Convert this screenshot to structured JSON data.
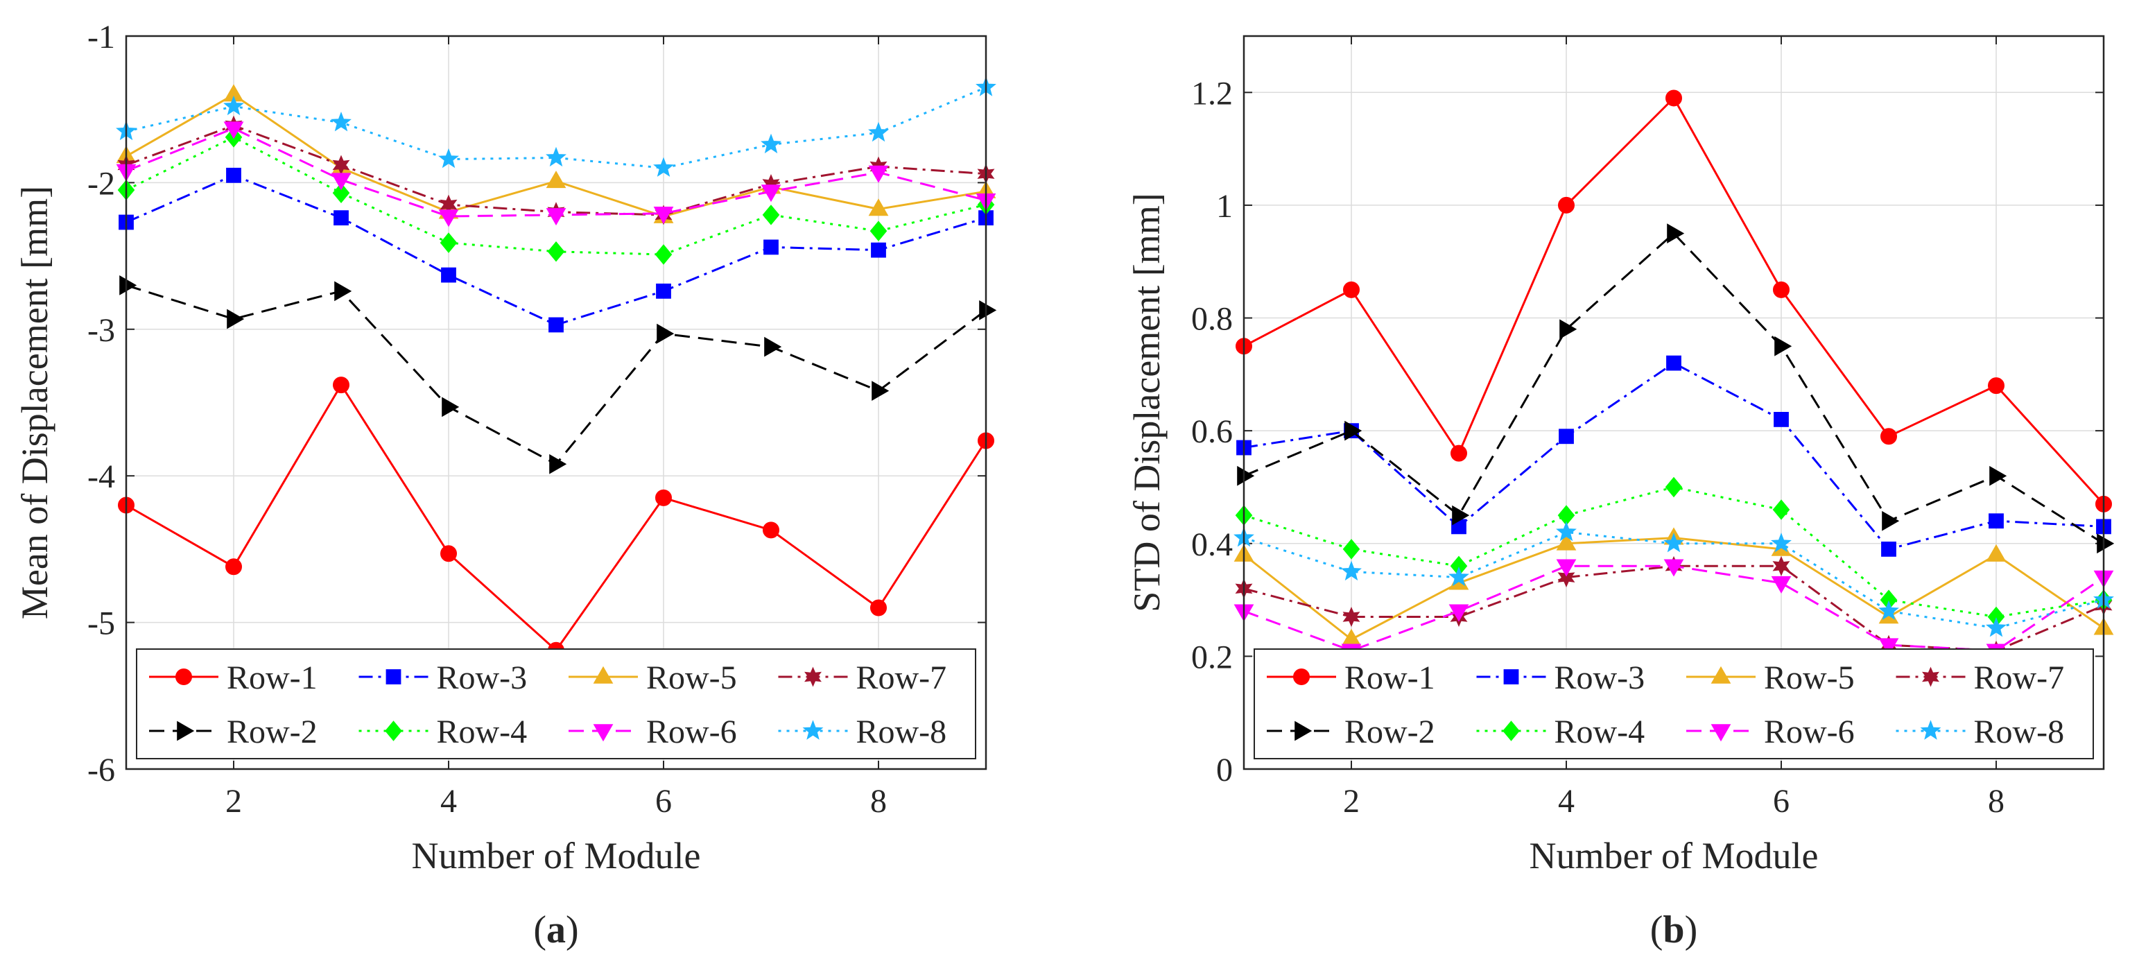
{
  "chart_data": [
    {
      "type": "line",
      "panel_label": "a",
      "title": "",
      "xlabel": "Number of Module",
      "ylabel": "Mean of Displacement [mm]",
      "xlim": [
        1,
        9
      ],
      "ylim": [
        -6,
        -1
      ],
      "xticks": [
        2,
        4,
        6,
        8
      ],
      "yticks": [
        -6,
        -5,
        -4,
        -3,
        -2,
        -1
      ],
      "grid": true,
      "legend_position": "bottom",
      "x": [
        1,
        2,
        3,
        4,
        5,
        6,
        7,
        8,
        9
      ],
      "series": [
        {
          "name": "Row-1",
          "values": [
            -4.2,
            -4.62,
            -3.38,
            -4.53,
            -5.19,
            -4.15,
            -4.37,
            -4.9,
            -3.76
          ]
        },
        {
          "name": "Row-3",
          "values": [
            -2.27,
            -1.95,
            -2.24,
            -2.63,
            -2.97,
            -2.74,
            -2.44,
            -2.46,
            -2.24
          ]
        },
        {
          "name": "Row-5",
          "values": [
            -1.82,
            -1.4,
            -1.9,
            -2.2,
            -1.99,
            -2.23,
            -2.03,
            -2.18,
            -2.06
          ]
        },
        {
          "name": "Row-7",
          "values": [
            -1.88,
            -1.61,
            -1.88,
            -2.15,
            -2.2,
            -2.22,
            -2.01,
            -1.89,
            -1.94
          ]
        },
        {
          "name": "Row-2",
          "values": [
            -2.7,
            -2.93,
            -2.74,
            -3.53,
            -3.92,
            -3.03,
            -3.12,
            -3.42,
            -2.87
          ]
        },
        {
          "name": "Row-4",
          "values": [
            -2.05,
            -1.69,
            -2.07,
            -2.41,
            -2.47,
            -2.49,
            -2.22,
            -2.33,
            -2.15
          ]
        },
        {
          "name": "Row-6",
          "values": [
            -1.92,
            -1.63,
            -1.98,
            -2.23,
            -2.22,
            -2.21,
            -2.06,
            -1.93,
            -2.12
          ]
        },
        {
          "name": "Row-8",
          "values": [
            -1.65,
            -1.48,
            -1.59,
            -1.84,
            -1.83,
            -1.9,
            -1.74,
            -1.66,
            -1.35
          ]
        }
      ]
    },
    {
      "type": "line",
      "panel_label": "b",
      "title": "",
      "xlabel": "Number of Module",
      "ylabel": "STD of Displacement [mm]",
      "xlim": [
        1,
        9
      ],
      "ylim": [
        0,
        1.3
      ],
      "xticks": [
        2,
        4,
        6,
        8
      ],
      "yticks": [
        0,
        0.2,
        0.4,
        0.6,
        0.8,
        1,
        1.2
      ],
      "ytick_labels": [
        "0",
        "0.2",
        "0.4",
        "0.6",
        "0.8",
        "1",
        "1.2"
      ],
      "grid": true,
      "legend_position": "bottom",
      "x": [
        1,
        2,
        3,
        4,
        5,
        6,
        7,
        8,
        9
      ],
      "series": [
        {
          "name": "Row-1",
          "values": [
            0.75,
            0.85,
            0.56,
            1.0,
            1.19,
            0.85,
            0.59,
            0.68,
            0.47
          ]
        },
        {
          "name": "Row-3",
          "values": [
            0.57,
            0.6,
            0.43,
            0.59,
            0.72,
            0.62,
            0.39,
            0.44,
            0.43
          ]
        },
        {
          "name": "Row-5",
          "values": [
            0.38,
            0.23,
            0.33,
            0.4,
            0.41,
            0.39,
            0.27,
            0.38,
            0.25
          ]
        },
        {
          "name": "Row-7",
          "values": [
            0.32,
            0.27,
            0.27,
            0.34,
            0.36,
            0.36,
            0.22,
            0.21,
            0.29
          ]
        },
        {
          "name": "Row-2",
          "values": [
            0.52,
            0.6,
            0.45,
            0.78,
            0.95,
            0.75,
            0.44,
            0.52,
            0.4
          ]
        },
        {
          "name": "Row-4",
          "values": [
            0.45,
            0.39,
            0.36,
            0.45,
            0.5,
            0.46,
            0.3,
            0.27,
            0.3
          ]
        },
        {
          "name": "Row-6",
          "values": [
            0.28,
            0.21,
            0.28,
            0.36,
            0.36,
            0.33,
            0.22,
            0.21,
            0.34
          ]
        },
        {
          "name": "Row-8",
          "values": [
            0.41,
            0.35,
            0.34,
            0.42,
            0.4,
            0.4,
            0.28,
            0.25,
            0.3
          ]
        }
      ]
    }
  ],
  "styles": {
    "Row-1": {
      "color": "#ff0000",
      "dash": "solid",
      "marker": "circle"
    },
    "Row-2": {
      "color": "#000000",
      "dash": "dashed",
      "marker": "triangle-right"
    },
    "Row-3": {
      "color": "#0000ff",
      "dash": "dashdot",
      "marker": "square"
    },
    "Row-4": {
      "color": "#00ff00",
      "dash": "dotted",
      "marker": "diamond"
    },
    "Row-5": {
      "color": "#edb120",
      "dash": "solid",
      "marker": "triangle-up"
    },
    "Row-6": {
      "color": "#ff00ff",
      "dash": "dashed",
      "marker": "triangle-down"
    },
    "Row-7": {
      "color": "#a2142f",
      "dash": "dashdot",
      "marker": "hexagram"
    },
    "Row-8": {
      "color": "#1eb4ff",
      "dash": "dotted",
      "marker": "pentagram"
    }
  },
  "legend_order": [
    [
      "Row-1",
      "Row-3",
      "Row-5",
      "Row-7"
    ],
    [
      "Row-2",
      "Row-4",
      "Row-6",
      "Row-8"
    ]
  ]
}
